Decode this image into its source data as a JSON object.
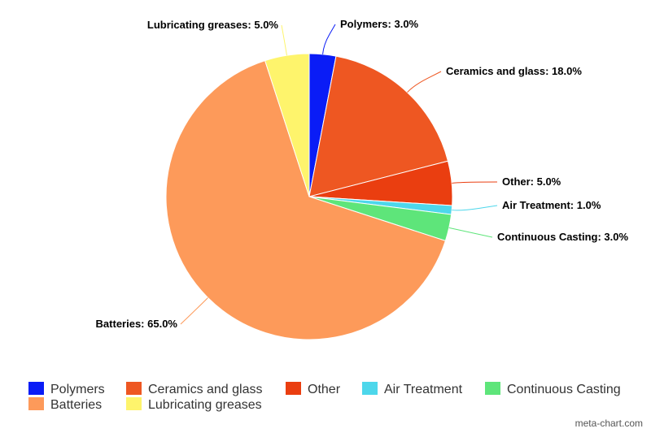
{
  "chart_data": {
    "type": "pie",
    "slices": [
      {
        "label": "Polymers",
        "value": 3.0,
        "color": "#0a1cf6",
        "label_text": "Polymers: 3.0%"
      },
      {
        "label": "Ceramics and glass",
        "value": 18.0,
        "color": "#ee5722",
        "label_text": "Ceramics and glass: 18.0%"
      },
      {
        "label": "Other",
        "value": 5.0,
        "color": "#ea3e10",
        "label_text": "Other: 5.0%"
      },
      {
        "label": "Air Treatment",
        "value": 1.0,
        "color": "#4dd7eb",
        "label_text": "Air Treatment: 1.0%"
      },
      {
        "label": "Continuous Casting",
        "value": 3.0,
        "color": "#5ee57a",
        "label_text": "Continuous Casting: 3.0%"
      },
      {
        "label": "Batteries",
        "value": 65.0,
        "color": "#fd9a5a",
        "label_text": "Batteries: 65.0%"
      },
      {
        "label": "Lubricating greases",
        "value": 5.0,
        "color": "#fef46c",
        "label_text": "Lubricating greases: 5.0%"
      }
    ],
    "legend_position": "bottom-left"
  },
  "credit": "meta-chart.com"
}
